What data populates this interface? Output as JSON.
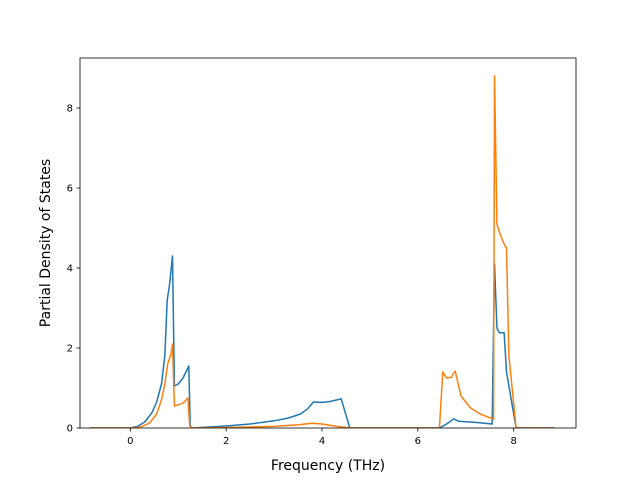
{
  "chart_data": {
    "type": "line",
    "title": "",
    "xlabel": "Frequency (THz)",
    "ylabel": "Partial Density of States",
    "xlim": [
      -1.05,
      9.3
    ],
    "ylim": [
      0,
      9.25
    ],
    "xticks": [
      0,
      2,
      4,
      6,
      8
    ],
    "yticks": [
      0,
      2,
      4,
      6,
      8
    ],
    "grid": false,
    "legend": "none",
    "series": [
      {
        "color": "#1f77b4",
        "points": [
          [
            -0.85,
            0
          ],
          [
            0,
            0
          ],
          [
            0.15,
            0.04
          ],
          [
            0.3,
            0.15
          ],
          [
            0.45,
            0.38
          ],
          [
            0.55,
            0.65
          ],
          [
            0.65,
            1.1
          ],
          [
            0.72,
            1.8
          ],
          [
            0.77,
            3.2
          ],
          [
            0.82,
            3.6
          ],
          [
            0.88,
            4.3
          ],
          [
            0.92,
            1.05
          ],
          [
            1.0,
            1.1
          ],
          [
            1.1,
            1.25
          ],
          [
            1.22,
            1.55
          ],
          [
            1.25,
            0.05
          ],
          [
            1.3,
            0
          ],
          [
            2.0,
            0.05
          ],
          [
            2.5,
            0.1
          ],
          [
            3.0,
            0.18
          ],
          [
            3.3,
            0.25
          ],
          [
            3.55,
            0.35
          ],
          [
            3.7,
            0.48
          ],
          [
            3.82,
            0.65
          ],
          [
            4.0,
            0.64
          ],
          [
            4.15,
            0.66
          ],
          [
            4.3,
            0.7
          ],
          [
            4.4,
            0.73
          ],
          [
            4.58,
            0
          ],
          [
            6.45,
            0
          ],
          [
            6.6,
            0.1
          ],
          [
            6.75,
            0.23
          ],
          [
            6.85,
            0.17
          ],
          [
            7.2,
            0.14
          ],
          [
            7.55,
            0.1
          ],
          [
            7.6,
            4.1
          ],
          [
            7.65,
            2.5
          ],
          [
            7.7,
            2.38
          ],
          [
            7.8,
            2.38
          ],
          [
            7.85,
            1.4
          ],
          [
            7.95,
            0.7
          ],
          [
            8.05,
            0
          ],
          [
            8.85,
            0
          ]
        ]
      },
      {
        "color": "#ff7f0e",
        "points": [
          [
            -0.85,
            0
          ],
          [
            0,
            0
          ],
          [
            0.2,
            0.02
          ],
          [
            0.4,
            0.12
          ],
          [
            0.55,
            0.35
          ],
          [
            0.65,
            0.7
          ],
          [
            0.72,
            1.1
          ],
          [
            0.78,
            1.6
          ],
          [
            0.85,
            1.85
          ],
          [
            0.88,
            2.1
          ],
          [
            0.92,
            0.55
          ],
          [
            1.0,
            0.58
          ],
          [
            1.1,
            0.62
          ],
          [
            1.2,
            0.75
          ],
          [
            1.24,
            0.05
          ],
          [
            1.3,
            0
          ],
          [
            2.0,
            0.01
          ],
          [
            3.0,
            0.04
          ],
          [
            3.5,
            0.08
          ],
          [
            3.8,
            0.12
          ],
          [
            4.0,
            0.1
          ],
          [
            4.3,
            0.04
          ],
          [
            4.6,
            0
          ],
          [
            6.45,
            0
          ],
          [
            6.52,
            1.4
          ],
          [
            6.6,
            1.25
          ],
          [
            6.7,
            1.27
          ],
          [
            6.75,
            1.38
          ],
          [
            6.78,
            1.42
          ],
          [
            6.9,
            0.8
          ],
          [
            7.1,
            0.5
          ],
          [
            7.3,
            0.35
          ],
          [
            7.58,
            0.22
          ],
          [
            7.6,
            8.8
          ],
          [
            7.65,
            5.1
          ],
          [
            7.7,
            4.9
          ],
          [
            7.8,
            4.6
          ],
          [
            7.85,
            4.5
          ],
          [
            7.9,
            1.8
          ],
          [
            8.05,
            0
          ],
          [
            8.85,
            0
          ]
        ]
      }
    ]
  }
}
